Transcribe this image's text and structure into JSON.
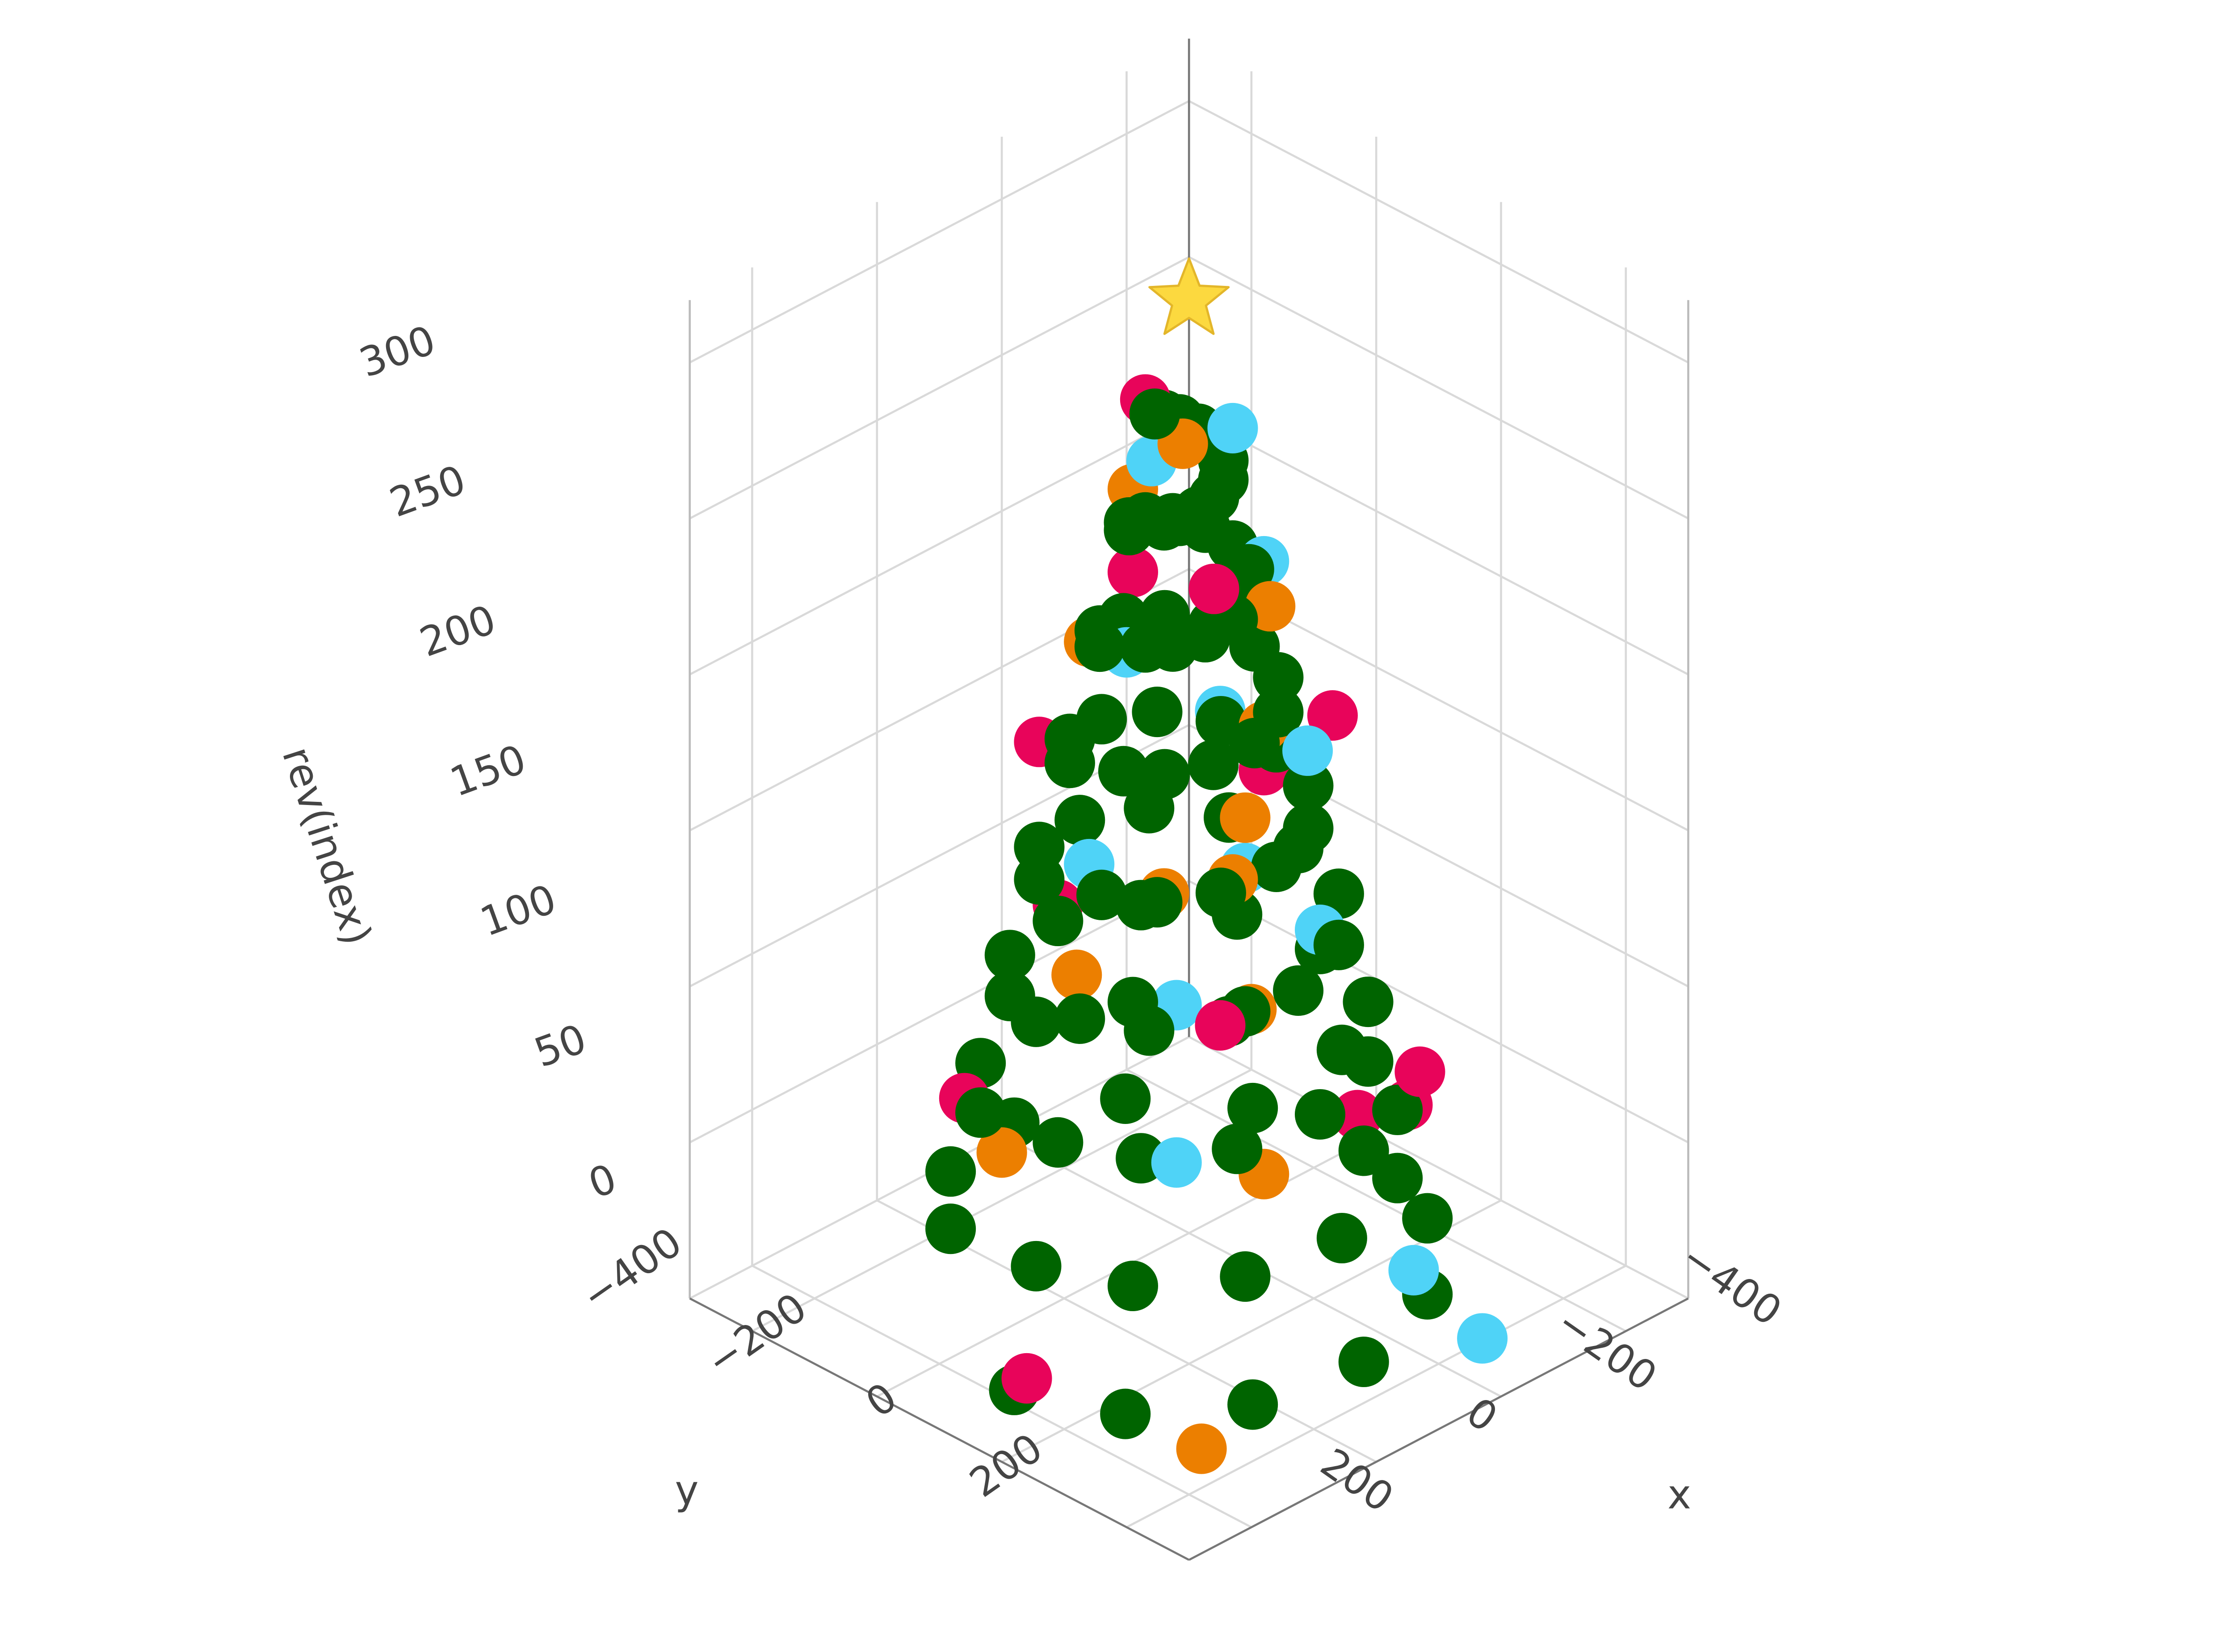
{
  "chart_data": {
    "type": "scatter3d",
    "x_label": "x",
    "y_label": "y",
    "z_label": "rev(index)",
    "xlim": [
      -500,
      300
    ],
    "ylim": [
      -500,
      300
    ],
    "zlim": [
      0,
      320
    ],
    "xticks": [
      {
        "value": -400,
        "label": "−400"
      },
      {
        "value": -200,
        "label": "−200"
      },
      0,
      200
    ],
    "yticks": [
      {
        "value": -400,
        "label": "−400"
      },
      {
        "value": -200,
        "label": "−200"
      },
      0,
      200
    ],
    "zticks": [
      0,
      50,
      100,
      150,
      200,
      250,
      300
    ],
    "grid": true,
    "series": [
      {
        "color": "#006400",
        "symbol": "circle",
        "x": [
          180,
          142,
          40,
          -100,
          -240,
          -342,
          -380,
          -342,
          -240,
          -100,
          40,
          142,
          145,
          112,
          22,
          -100,
          -222,
          -312,
          -345,
          -312,
          -222,
          -100,
          22,
          112,
          110,
          82,
          5,
          -100,
          -205,
          -282,
          -310,
          -282,
          -205,
          -100,
          5,
          82,
          75,
          52,
          -12,
          -100,
          -188,
          -252,
          -275,
          -252,
          -188,
          -100,
          -12,
          52,
          40,
          21,
          -30,
          -100,
          -170,
          -221,
          -240,
          -221,
          -170,
          -100,
          -30,
          21,
          5,
          -9,
          -48,
          -100,
          -152,
          -191,
          -205,
          -191,
          -152,
          -100,
          -48,
          -9,
          -30,
          -39,
          -65,
          -100,
          -135,
          -161,
          -170,
          -161,
          -135,
          -100,
          -65,
          -39,
          -60,
          -65,
          -80,
          -100,
          -120,
          -135,
          -140,
          -135,
          -120,
          -100,
          -80,
          -65
        ],
        "y": [
          -100,
          40,
          142,
          180,
          142,
          40,
          -100,
          -240,
          -342,
          -380,
          -342,
          -240,
          -100,
          22,
          112,
          145,
          112,
          22,
          -100,
          -222,
          -312,
          -345,
          -312,
          -222,
          -100,
          5,
          82,
          110,
          82,
          5,
          -100,
          -205,
          -282,
          -310,
          -282,
          -205,
          -100,
          -12,
          52,
          75,
          52,
          -12,
          -100,
          -188,
          -252,
          -275,
          -252,
          -188,
          -100,
          -30,
          21,
          40,
          21,
          -30,
          -100,
          -170,
          -221,
          -240,
          -221,
          -170,
          -100,
          -48,
          -9,
          5,
          -9,
          -48,
          -100,
          -152,
          -191,
          -205,
          -191,
          -152,
          -100,
          -65,
          -39,
          -30,
          -39,
          -65,
          -100,
          -135,
          -161,
          -170,
          -161,
          -135,
          -100,
          -80,
          -65,
          -60,
          -65,
          -80,
          -100,
          -120,
          -135,
          -140,
          -135,
          -120
        ],
        "z": [
          0,
          3,
          6,
          9,
          12,
          15,
          18,
          21,
          24,
          27,
          30,
          33,
          36,
          39,
          42,
          45,
          48,
          51,
          54,
          57,
          60,
          63,
          66,
          69,
          72,
          75,
          78,
          81,
          84,
          87,
          90,
          93,
          96,
          99,
          102,
          105,
          108,
          111,
          114,
          117,
          120,
          123,
          126,
          129,
          132,
          135,
          138,
          141,
          144,
          147,
          150,
          153,
          156,
          159,
          162,
          165,
          168,
          171,
          174,
          177,
          180,
          183,
          186,
          189,
          192,
          195,
          198,
          201,
          204,
          207,
          210,
          213,
          216,
          219,
          222,
          225,
          228,
          231,
          234,
          237,
          240,
          243,
          246,
          249,
          252,
          255,
          258,
          261,
          264,
          267,
          270,
          273,
          276,
          279,
          282,
          285
        ]
      },
      {
        "color": "#e8045a",
        "symbol": "circle",
        "x": [
          200,
          -420,
          -380,
          60,
          -250,
          -120,
          30,
          -300,
          -20,
          -200,
          -140,
          -60,
          -170,
          -80
        ],
        "y": [
          -60,
          -150,
          -30,
          -300,
          120,
          -330,
          80,
          -180,
          -260,
          30,
          -230,
          -20,
          -140,
          -150
        ],
        "z": [
          10,
          20,
          40,
          60,
          80,
          100,
          120,
          140,
          170,
          190,
          215,
          240,
          265,
          285
        ]
      },
      {
        "color": "#4fd3f7",
        "symbol": "circle",
        "x": [
          -250,
          -180,
          -300,
          60,
          -350,
          -220,
          -40,
          -260,
          -150,
          -60,
          -190,
          -110,
          -130
        ],
        "y": [
          220,
          180,
          -320,
          40,
          -260,
          -10,
          -200,
          -210,
          40,
          -160,
          -70,
          -170,
          -60
        ],
        "z": [
          5,
          30,
          50,
          75,
          95,
          115,
          135,
          160,
          185,
          205,
          230,
          260,
          280
        ]
      },
      {
        "color": "#ec7f00",
        "symbol": "circle",
        "x": [
          120,
          -30,
          -330,
          -40,
          -270,
          20,
          -260,
          -60,
          -200,
          -70,
          -150,
          -100,
          -90
        ],
        "y": [
          140,
          -330,
          -230,
          80,
          -310,
          -160,
          -170,
          10,
          -80,
          -230,
          -20,
          -190,
          -100
        ],
        "z": [
          0,
          30,
          55,
          65,
          90,
          110,
          130,
          150,
          175,
          200,
          225,
          250,
          275
        ]
      },
      {
        "color": "#fcd93f",
        "symbol": "star",
        "x": [
          -100
        ],
        "y": [
          -100
        ],
        "z": [
          320
        ]
      }
    ]
  }
}
